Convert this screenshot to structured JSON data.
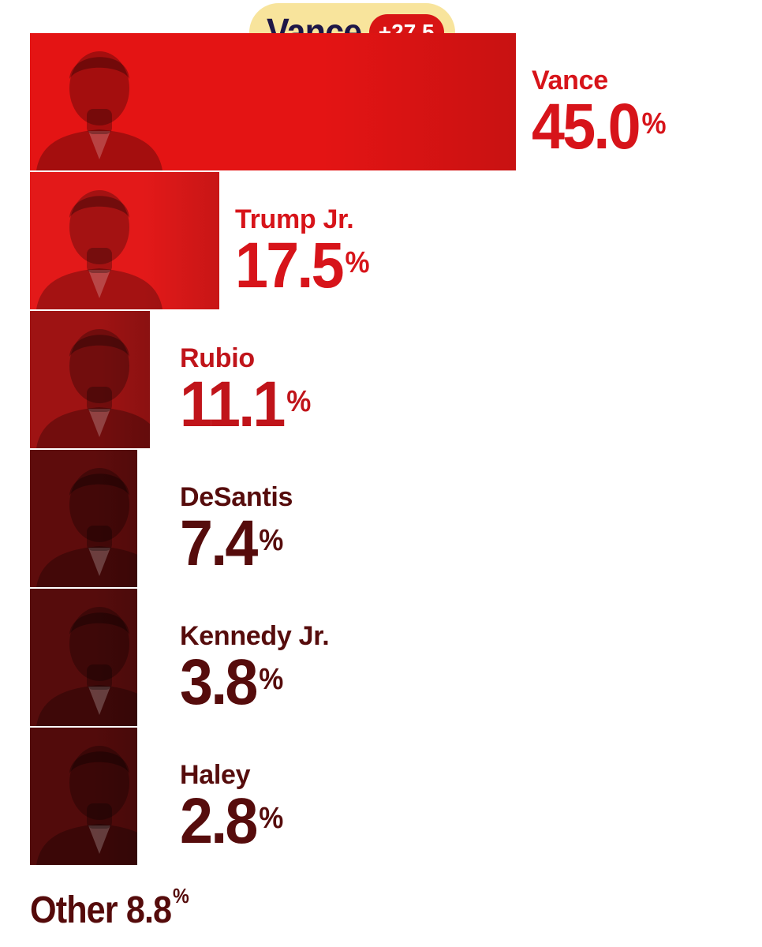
{
  "chart_data": {
    "type": "bar",
    "orientation": "horizontal",
    "title": "",
    "xlabel": "",
    "ylabel": "",
    "unit": "%",
    "xlim": [
      0,
      45
    ],
    "categories": [
      "Vance",
      "Trump Jr.",
      "Rubio",
      "DeSantis",
      "Kennedy Jr.",
      "Haley"
    ],
    "values": [
      45.0,
      17.5,
      11.1,
      7.4,
      3.8,
      2.8
    ],
    "value_labels": [
      "45.0",
      "17.5",
      "11.1",
      "7.4",
      "3.8",
      "2.8"
    ],
    "bar_colors": [
      "#e41414",
      "#e31919",
      "#9e1313",
      "#5e0c0c",
      "#560c0c",
      "#520b0b"
    ],
    "label_colors": [
      "#d7141a",
      "#d7141a",
      "#c0141a",
      "#560c0c",
      "#560c0c",
      "#560c0c"
    ],
    "leader": {
      "name": "Vance",
      "margin": "+27.5"
    },
    "other": {
      "label": "Other",
      "value": "8.8"
    },
    "percent_symbol": "%",
    "grid": false,
    "legend": "none"
  },
  "colors": {
    "badge_bg": "#f8e49c",
    "badge_text": "#1e1747",
    "margin_bg": "#d81414",
    "other_text": "#550b0b"
  }
}
